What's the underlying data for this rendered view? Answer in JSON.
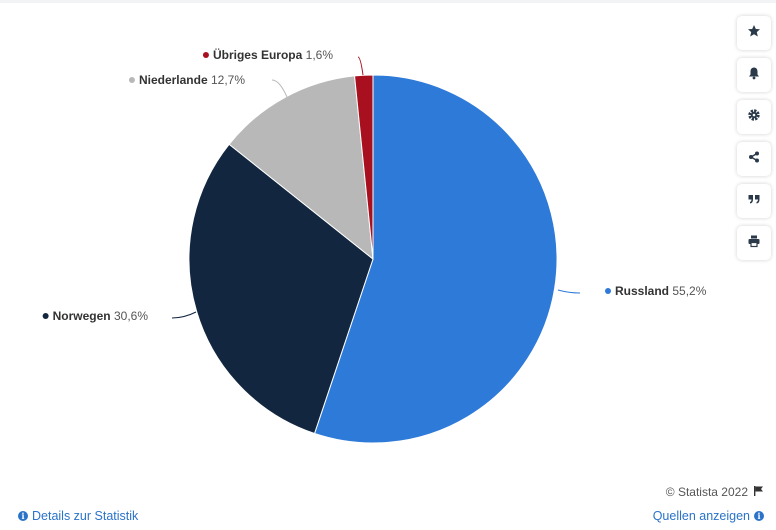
{
  "chart_data": {
    "type": "pie",
    "slices": [
      {
        "label": "Russland",
        "value": 55.2,
        "value_label": "55,2%",
        "color": "#2e7ad9"
      },
      {
        "label": "Norwegen",
        "value": 30.6,
        "value_label": "30,6%",
        "color": "#12263f"
      },
      {
        "label": "Niederlande",
        "value": 12.7,
        "value_label": "12,7%",
        "color": "#b8b8b8"
      },
      {
        "label": "Übriges Europa",
        "value": 1.6,
        "value_label": "1,6%",
        "color": "#a8101f"
      }
    ]
  },
  "toolbar": {
    "icons": [
      "star-icon",
      "bell-icon",
      "gear-icon",
      "share-icon",
      "quote-icon",
      "print-icon"
    ]
  },
  "footer": {
    "credit": "© Statista 2022",
    "details_link": "Details zur Statistik",
    "sources_link": "Quellen anzeigen"
  }
}
